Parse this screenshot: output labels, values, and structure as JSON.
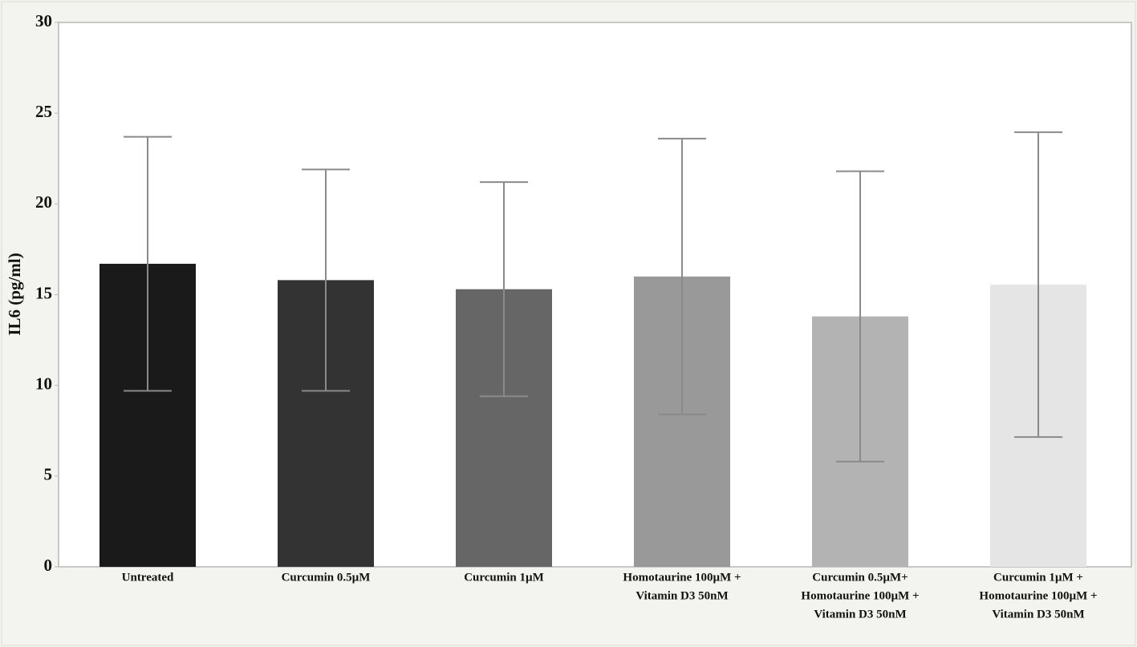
{
  "chart_data": {
    "type": "bar",
    "y_label": "IL6 (pg/ml)",
    "categories": [
      [
        "Untreated"
      ],
      [
        "Curcumin 0.5µM"
      ],
      [
        "Curcumin 1µM"
      ],
      [
        "Homotaurine 100µM +",
        "Vitamin D3 50nM"
      ],
      [
        "Curcumin 0.5µM+",
        "Homotaurine 100µM +",
        "Vitamin D3 50nM"
      ],
      [
        "Curcumin 1µM +",
        "Homotaurine 100µM +",
        "Vitamin D3 50nM"
      ]
    ],
    "values": [
      16.7,
      15.8,
      15.3,
      16.0,
      13.8,
      15.55
    ],
    "errors": [
      7.0,
      6.1,
      5.9,
      7.6,
      8.0,
      8.4
    ],
    "colors": [
      "#1a1a1a",
      "#333333",
      "#666666",
      "#999999",
      "#b3b3b3",
      "#e5e5e5"
    ],
    "error_color": "#8a8a8a",
    "ylim": [
      0,
      30
    ],
    "yticks": [
      0,
      5,
      10,
      15,
      20,
      25,
      30
    ],
    "grid": false
  }
}
